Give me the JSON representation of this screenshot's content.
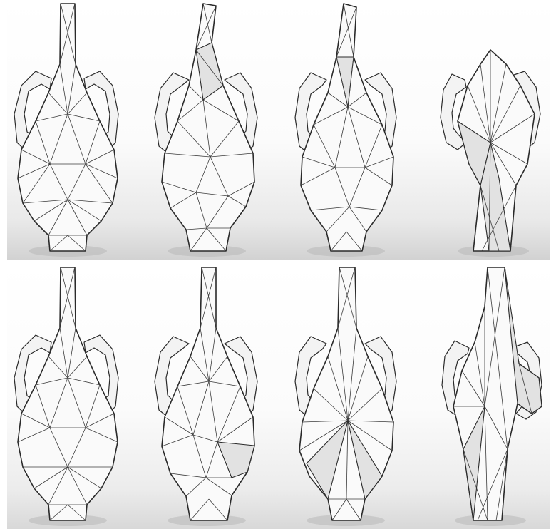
{
  "figure": {
    "rows": [
      {
        "name": "top-row",
        "panels": [
          "vase-1",
          "vase-2",
          "vase-3",
          "vase-4"
        ]
      },
      {
        "name": "bottom-row",
        "panels": [
          "vase-1",
          "vase-2",
          "vase-3",
          "vase-4"
        ]
      }
    ],
    "colors": {
      "mesh_fill": "#fafafa",
      "wire": "#2a2a2a",
      "background": "#ffffff",
      "floor_shadow": "#cfcfcf"
    }
  }
}
